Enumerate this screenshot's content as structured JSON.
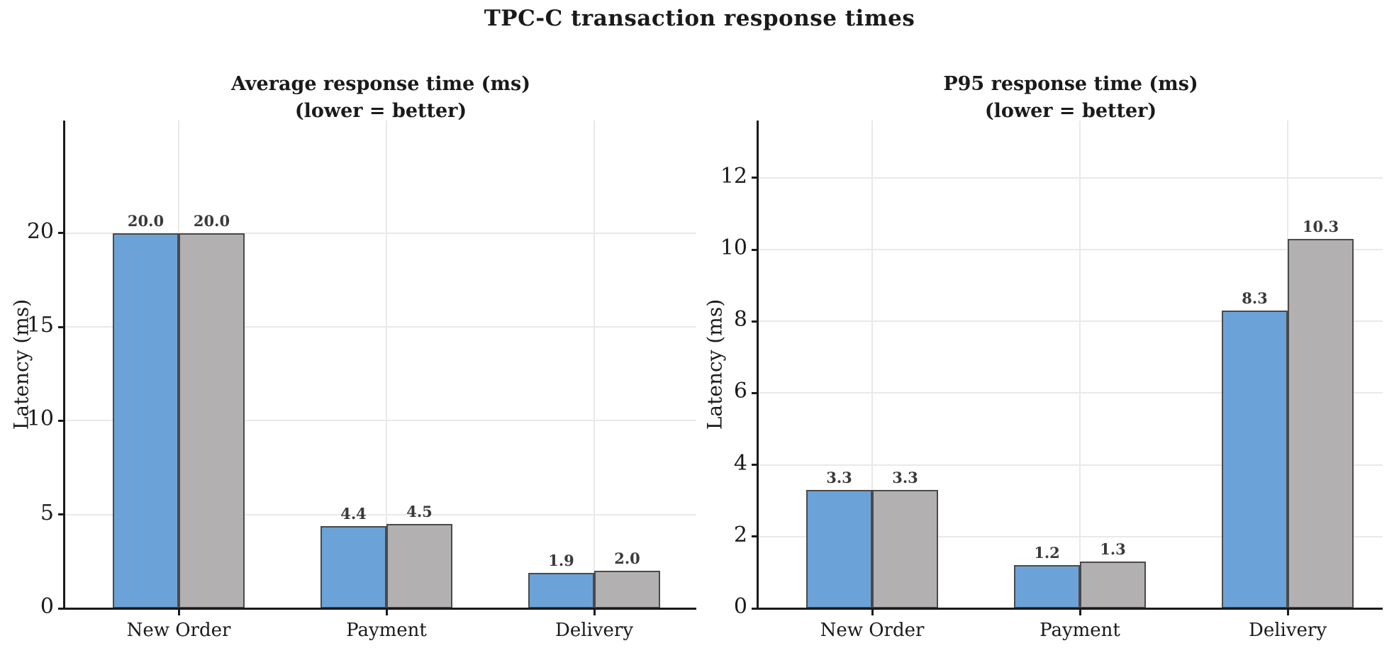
{
  "figure_title": "TPC-C transaction response times",
  "colors": {
    "bar_blue": "#6BA3D9",
    "bar_gray": "#B2B0B0",
    "bar_edge": "#4A4A4A",
    "grid": "#E9E9E9",
    "value_label": "#3A3A3A",
    "axis": "#1A1A1A",
    "background": "#FFFFFF"
  },
  "chart_data": [
    {
      "type": "bar",
      "title": "Average response time (ms)",
      "subtitle": "(lower = better)",
      "ylabel": "Latency (ms)",
      "categories": [
        "New Order",
        "Payment",
        "Delivery"
      ],
      "series": [
        {
          "name": "blue",
          "color_key": "bar_blue",
          "values": [
            20.0,
            4.4,
            1.9
          ],
          "value_labels": [
            "20.0",
            "4.4",
            "1.9"
          ]
        },
        {
          "name": "gray",
          "color_key": "bar_gray",
          "values": [
            20.0,
            4.5,
            2.0
          ],
          "value_labels": [
            "20.0",
            "4.5",
            "2.0"
          ]
        }
      ],
      "yticks": [
        0,
        5,
        10,
        15,
        20
      ],
      "ylim": [
        0,
        26
      ],
      "grid": true,
      "legend": null
    },
    {
      "type": "bar",
      "title": "P95 response time (ms)",
      "subtitle": "(lower = better)",
      "ylabel": "Latency (ms)",
      "categories": [
        "New Order",
        "Payment",
        "Delivery"
      ],
      "series": [
        {
          "name": "blue",
          "color_key": "bar_blue",
          "values": [
            3.3,
            1.2,
            8.3
          ],
          "value_labels": [
            "3.3",
            "1.2",
            "8.3"
          ]
        },
        {
          "name": "gray",
          "color_key": "bar_gray",
          "values": [
            3.3,
            1.3,
            10.3
          ],
          "value_labels": [
            "3.3",
            "1.3",
            "10.3"
          ]
        }
      ],
      "yticks": [
        0,
        2,
        4,
        6,
        8,
        10,
        12
      ],
      "ylim": [
        0,
        13.6
      ],
      "grid": true,
      "legend": null
    }
  ]
}
